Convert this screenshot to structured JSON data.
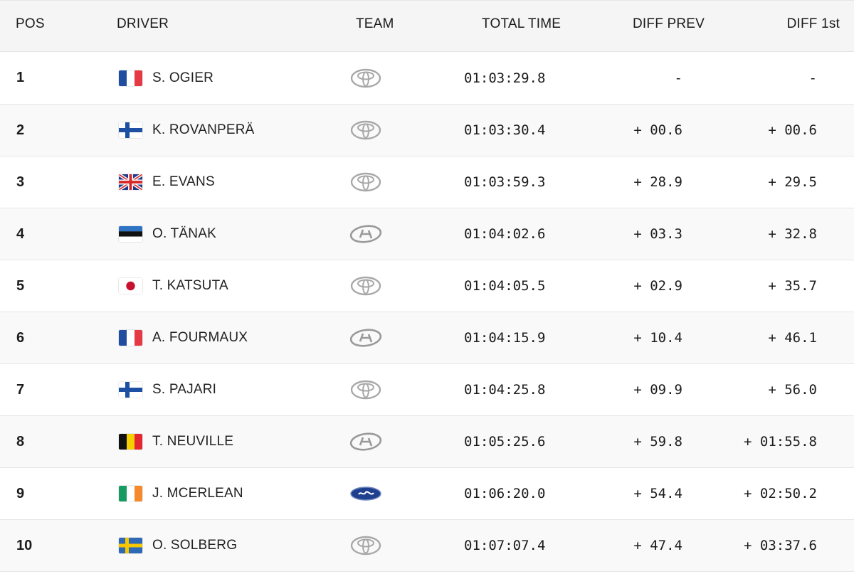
{
  "headers": {
    "pos": "POS",
    "driver": "DRIVER",
    "team": "TEAM",
    "total_time": "TOTAL TIME",
    "diff_prev": "DIFF PREV",
    "diff_first": "DIFF 1st"
  },
  "rows": [
    {
      "pos": "1",
      "flag": "france-flag",
      "driver": "S. OGIER",
      "team_logo": "toyota-logo",
      "time": "01:03:29.8",
      "diff_prev": "-",
      "diff_first": "-"
    },
    {
      "pos": "2",
      "flag": "finland-flag",
      "driver": "K. ROVANPERÄ",
      "team_logo": "toyota-logo",
      "time": "01:03:30.4",
      "diff_prev": "+ 00.6",
      "diff_first": "+ 00.6"
    },
    {
      "pos": "3",
      "flag": "uk-flag",
      "driver": "E. EVANS",
      "team_logo": "toyota-logo",
      "time": "01:03:59.3",
      "diff_prev": "+ 28.9",
      "diff_first": "+ 29.5"
    },
    {
      "pos": "4",
      "flag": "estonia-flag",
      "driver": "O. TÄNAK",
      "team_logo": "hyundai-logo",
      "time": "01:04:02.6",
      "diff_prev": "+ 03.3",
      "diff_first": "+ 32.8"
    },
    {
      "pos": "5",
      "flag": "japan-flag",
      "driver": "T. KATSUTA",
      "team_logo": "toyota-logo",
      "time": "01:04:05.5",
      "diff_prev": "+ 02.9",
      "diff_first": "+ 35.7"
    },
    {
      "pos": "6",
      "flag": "france-flag",
      "driver": "A. FOURMAUX",
      "team_logo": "hyundai-logo",
      "time": "01:04:15.9",
      "diff_prev": "+ 10.4",
      "diff_first": "+ 46.1"
    },
    {
      "pos": "7",
      "flag": "finland-flag",
      "driver": "S. PAJARI",
      "team_logo": "toyota-logo",
      "time": "01:04:25.8",
      "diff_prev": "+ 09.9",
      "diff_first": "+ 56.0"
    },
    {
      "pos": "8",
      "flag": "belgium-flag",
      "driver": "T. NEUVILLE",
      "team_logo": "hyundai-logo",
      "time": "01:05:25.6",
      "diff_prev": "+ 59.8",
      "diff_first": "+ 01:55.8"
    },
    {
      "pos": "9",
      "flag": "ireland-flag",
      "driver": "J. MCERLEAN",
      "team_logo": "ford-logo",
      "time": "01:06:20.0",
      "diff_prev": "+ 54.4",
      "diff_first": "+ 02:50.2"
    },
    {
      "pos": "10",
      "flag": "sweden-flag",
      "driver": "O. SOLBERG",
      "team_logo": "toyota-logo",
      "time": "01:07:07.4",
      "diff_prev": "+ 47.4",
      "diff_first": "+ 03:37.6"
    }
  ],
  "colors": {
    "header_bg": "#f5f5f5",
    "row_alt_bg": "#f9f9f9",
    "divider": "#e6e6e6",
    "ford_blue": "#1f3f8f"
  }
}
